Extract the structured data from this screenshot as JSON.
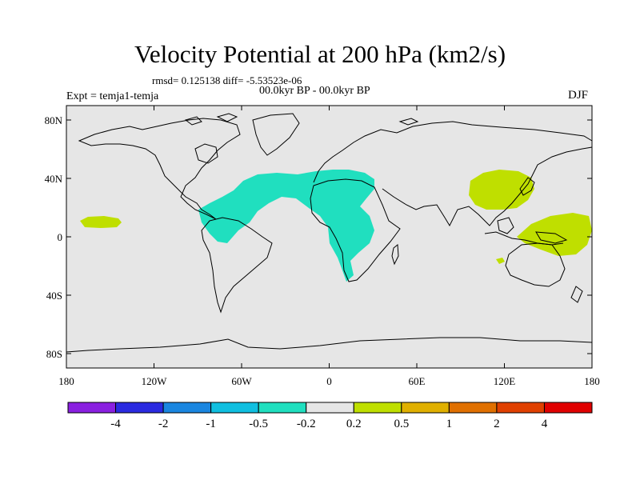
{
  "title": "Velocity Potential at 200 hPa (km2/s)",
  "stats_text": "rmsd= 0.125138 diff= -5.53523e-06",
  "period_text": "00.0kyr BP - 00.0kyr BP",
  "experiment_text": "Expt = temja1-temja",
  "season": "DJF",
  "map": {
    "projection": "cylindrical equidistant",
    "lat_ticks": [
      "80N",
      "40N",
      "0",
      "40S",
      "80S"
    ],
    "lon_ticks": [
      "180",
      "120W",
      "60W",
      "0",
      "60E",
      "120E",
      "180"
    ],
    "colors": {
      "background": "#e6e6e6",
      "negative_fill": "#20dfbf",
      "positive_fill": "#bfdf00",
      "coastline": "#000000"
    },
    "regions": [
      {
        "name": "negative-anomaly-atlantic-africa",
        "level": "-0.5 to -0.2"
      },
      {
        "name": "positive-anomaly-east-asia",
        "level": "0.2 to 0.5"
      },
      {
        "name": "positive-anomaly-west-pacific",
        "level": "0.2 to 0.5"
      },
      {
        "name": "positive-anomaly-central-pacific",
        "level": "0.2 to 0.5"
      }
    ]
  },
  "colorbar": {
    "labels": [
      "-4",
      "-2",
      "-1",
      "-0.5",
      "-0.2",
      "0.2",
      "0.5",
      "1",
      "2",
      "4"
    ],
    "colors": [
      "#8a20e0",
      "#2a2ae0",
      "#1a86e0",
      "#10bfe0",
      "#20dfbf",
      "#e6e6e6",
      "#bfdf00",
      "#e0b000",
      "#e07000",
      "#e04000",
      "#e00000"
    ]
  }
}
